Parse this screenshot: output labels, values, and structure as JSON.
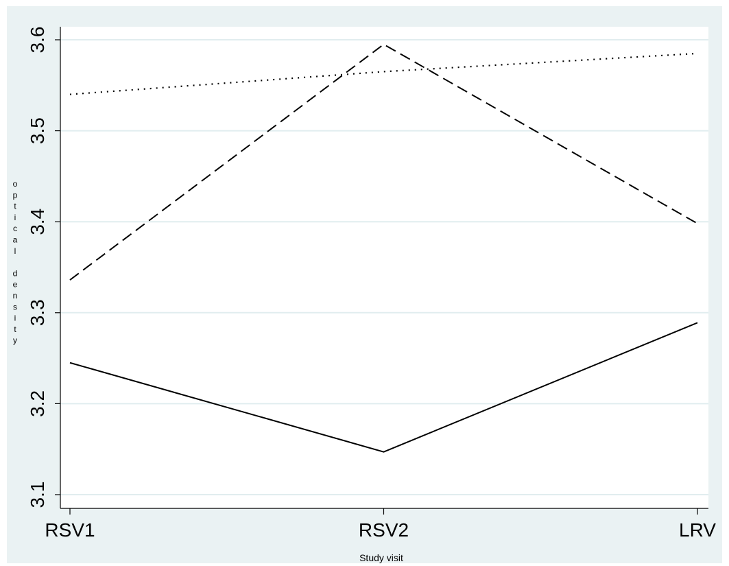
{
  "chart_data": {
    "type": "line",
    "title": "",
    "xlabel": "Study visit",
    "ylabel": "optical density",
    "categories": [
      "RSV1",
      "RSV2",
      "LRV"
    ],
    "ylim": [
      3.1,
      3.6
    ],
    "yticks": [
      "3.1",
      "3.2",
      "3.3",
      "3.4",
      "3.5",
      "3.6"
    ],
    "grid": true,
    "series": [
      {
        "style": "solid",
        "values": [
          3.245,
          3.147,
          3.289
        ]
      },
      {
        "style": "dashed",
        "values": [
          3.336,
          3.595,
          3.398
        ]
      },
      {
        "style": "dotted",
        "values": [
          3.54,
          3.565,
          3.585
        ]
      }
    ],
    "colors": {
      "background": "#eaf2f3",
      "plot_area": "#ffffff",
      "grid": "#e1edef",
      "lines": "#000000"
    }
  }
}
